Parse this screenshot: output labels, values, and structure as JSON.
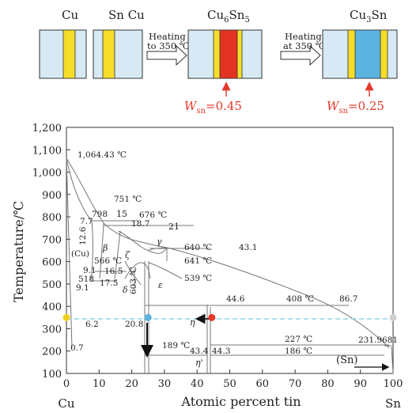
{
  "top": {
    "labels": {
      "cu": "Cu",
      "sncu": "Sn Cu"
    },
    "arrow1": {
      "line1": "Heating",
      "line2": "to 350 ℃"
    },
    "arrow2": {
      "line1": "Heating",
      "line2": "at 350 ℃"
    },
    "phase1": {
      "base": "Cu",
      "sub1": "6",
      "mid": "Sn",
      "sub2": "5"
    },
    "phase2": {
      "base": "Cu",
      "sub1": "3",
      "mid": "Sn"
    },
    "w1": {
      "sym": "W",
      "sub": "sn",
      "val": "=0.45"
    },
    "w2": {
      "sym": "W",
      "sub": "sn",
      "val": "=0.25"
    }
  },
  "colors": {
    "panel_blue": "#d6e9f5",
    "yellow": "#f5dd2a",
    "red_phase": "#e23222",
    "blue_phase": "#5bb3e0",
    "annot_red": "#e2392a",
    "dashed_line": "#8fd6e6"
  },
  "chart_data": {
    "type": "diagram",
    "ylabel": "Temperature/℃",
    "xlabel": "Atomic percent tin",
    "xlim": [
      0,
      100
    ],
    "ylim": [
      100,
      1200
    ],
    "yticks": [
      "100",
      "200",
      "300",
      "400",
      "500",
      "600",
      "700",
      "800",
      "900",
      "1,000",
      "1,100",
      "1,200"
    ],
    "xticks": [
      "0",
      "10",
      "20",
      "30",
      "40",
      "50",
      "60",
      "70",
      "80",
      "90",
      "100"
    ],
    "x_end_labels": {
      "left": "Cu",
      "right": "Sn"
    },
    "annotations": [
      {
        "text": "1,064.43 ℃"
      },
      {
        "text": "751 ℃"
      },
      {
        "text": "798"
      },
      {
        "text": "15"
      },
      {
        "text": "676 ℃"
      },
      {
        "text": "7.7"
      },
      {
        "text": "18.7"
      },
      {
        "text": "21"
      },
      {
        "text": "12.6"
      },
      {
        "text": "γ"
      },
      {
        "text": "640 ℃"
      },
      {
        "text": "43.1"
      },
      {
        "text": "(Cu)"
      },
      {
        "text": "β"
      },
      {
        "text": "566 ℃"
      },
      {
        "text": "ζ"
      },
      {
        "text": "641 ℃"
      },
      {
        "text": "9.1"
      },
      {
        "text": "16.5"
      },
      {
        "text": "518"
      },
      {
        "text": "539 ℃"
      },
      {
        "text": "9.1"
      },
      {
        "text": "17.5"
      },
      {
        "text": "δ"
      },
      {
        "text": "603 ℃"
      },
      {
        "text": "ε"
      },
      {
        "text": "44.6"
      },
      {
        "text": "408 ℃"
      },
      {
        "text": "86.7"
      },
      {
        "text": "6.2"
      },
      {
        "text": "20.8"
      },
      {
        "text": "η"
      },
      {
        "text": "227 ℃"
      },
      {
        "text": "189 ℃"
      },
      {
        "text": "0.7"
      },
      {
        "text": "43.4"
      },
      {
        "text": "44.3"
      },
      {
        "text": "186 ℃"
      },
      {
        "text": "231.9681"
      },
      {
        "text": "η'"
      },
      {
        "text": "(Sn)"
      }
    ],
    "markers": [
      {
        "x": 0,
        "y": 350,
        "color": "#f0d21e"
      },
      {
        "x": 25,
        "y": 350,
        "color": "#5bb3e0"
      },
      {
        "x": 44.5,
        "y": 350,
        "color": "#e2392a"
      },
      {
        "x": 100,
        "y": 350,
        "color": "#cfcfcf"
      }
    ],
    "reference_line": {
      "y": 350,
      "style": "dashed"
    }
  }
}
